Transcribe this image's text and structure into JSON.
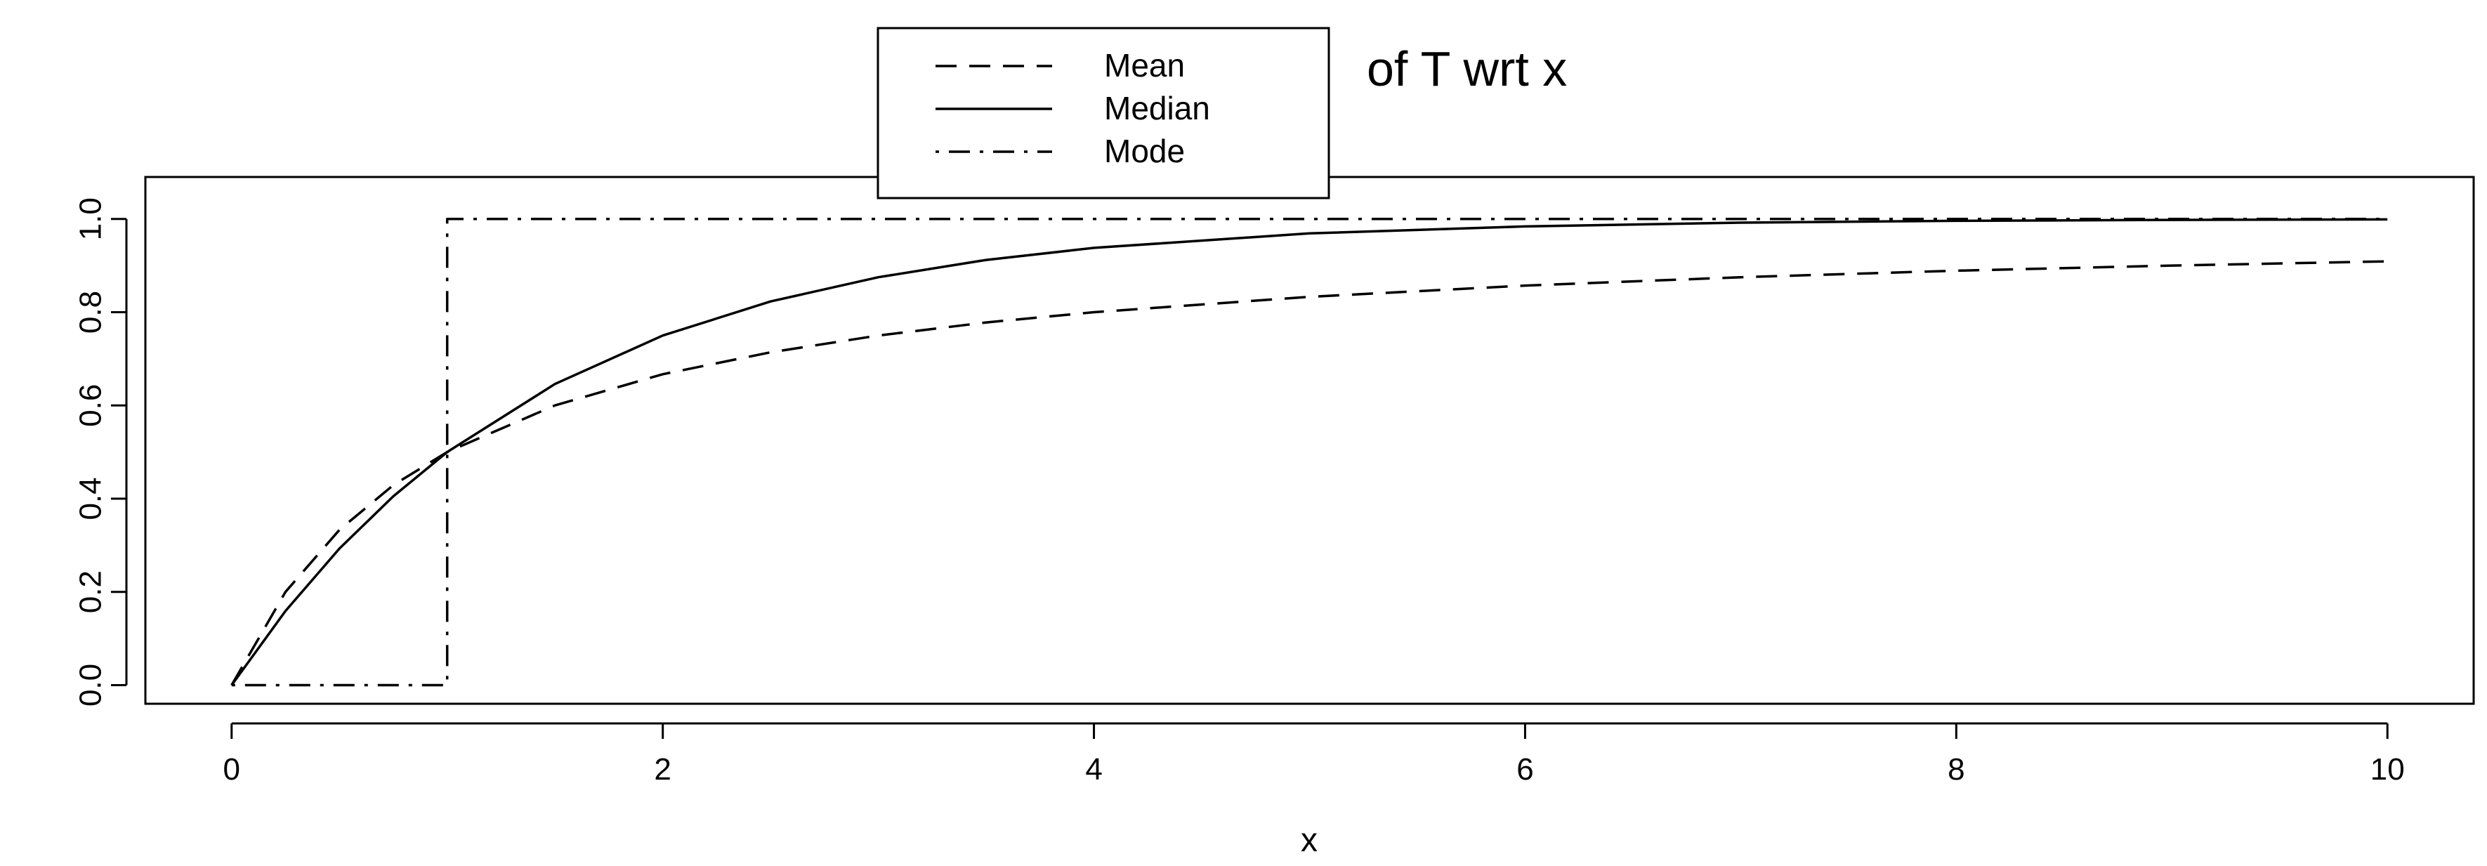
{
  "chart_data": {
    "type": "line",
    "title": "of T wrt x",
    "xlabel": "x",
    "ylabel": "",
    "xlim": [
      -0.4,
      10.4
    ],
    "ylim": [
      -0.04,
      1.09
    ],
    "x_ticks": [
      0,
      2,
      4,
      6,
      8,
      10
    ],
    "x_tick_labels": [
      "0",
      "2",
      "4",
      "6",
      "8",
      "10"
    ],
    "y_ticks": [
      0,
      0.2,
      0.4,
      0.6,
      0.8,
      1.0
    ],
    "y_tick_labels": [
      "0.0",
      "0.2",
      "0.4",
      "0.6",
      "0.8",
      "1.0"
    ],
    "grid": false,
    "legend_position": "top-center",
    "series": [
      {
        "name": "Mean",
        "line_style": "dashed",
        "color": "#000000",
        "x": [
          0,
          0.25,
          0.5,
          0.75,
          1,
          1.5,
          2,
          2.5,
          3,
          3.5,
          4,
          5,
          6,
          7,
          8,
          9,
          10
        ],
        "y": [
          0,
          0.2,
          0.333,
          0.429,
          0.5,
          0.6,
          0.667,
          0.714,
          0.75,
          0.778,
          0.8,
          0.833,
          0.857,
          0.875,
          0.889,
          0.9,
          0.909
        ]
      },
      {
        "name": "Median",
        "line_style": "solid",
        "color": "#000000",
        "x": [
          0,
          0.25,
          0.5,
          0.75,
          1,
          1.5,
          2,
          2.5,
          3,
          3.5,
          4,
          5,
          6,
          7,
          8,
          9,
          10
        ],
        "y": [
          0,
          0.159,
          0.293,
          0.405,
          0.5,
          0.646,
          0.75,
          0.823,
          0.875,
          0.912,
          0.938,
          0.969,
          0.984,
          0.992,
          0.996,
          0.998,
          0.999
        ]
      },
      {
        "name": "Mode",
        "line_style": "dotdash",
        "color": "#000000",
        "x": [
          0,
          1,
          1,
          10
        ],
        "y": [
          0,
          0,
          1,
          1
        ]
      }
    ]
  }
}
